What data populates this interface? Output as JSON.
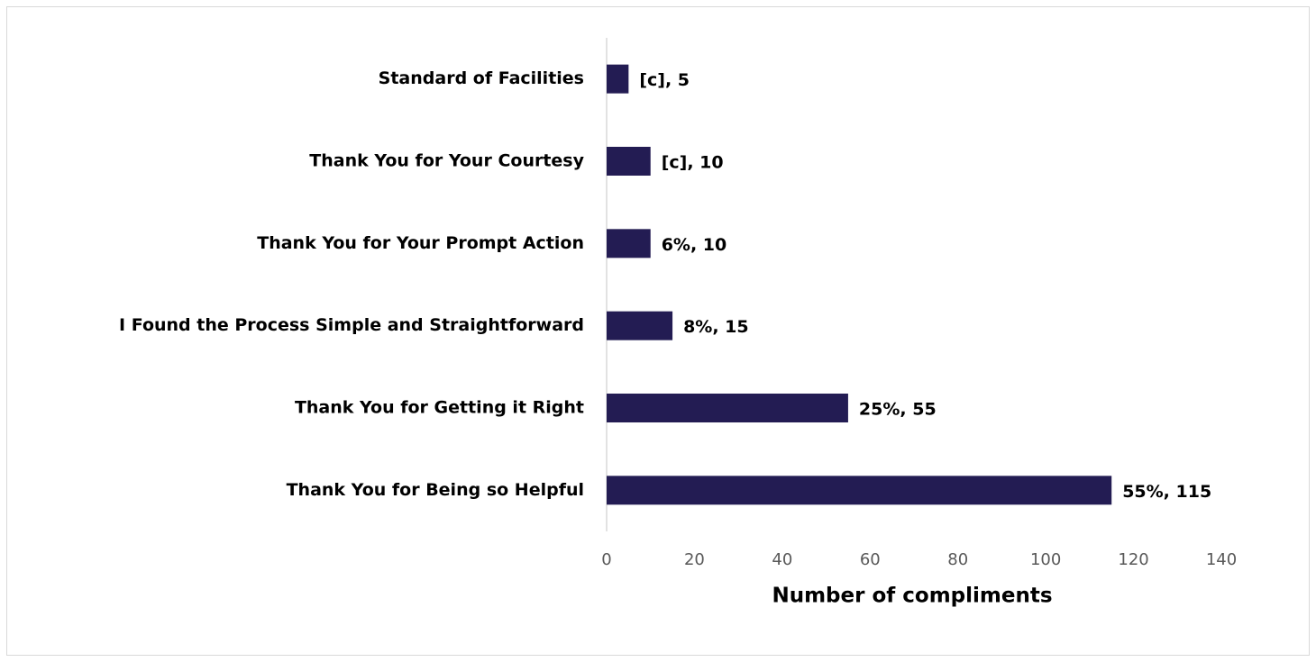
{
  "chart_data": {
    "type": "bar",
    "orientation": "horizontal",
    "categories": [
      "Standard of Facilities",
      "Thank You for Your Courtesy",
      "Thank You for Your Prompt Action",
      "I Found the Process Simple and Straightforward",
      "Thank You for Getting it Right",
      "Thank You for Being so Helpful"
    ],
    "values": [
      5,
      10,
      10,
      15,
      55,
      115
    ],
    "value_labels": [
      "[c], 5",
      "[c], 10",
      "6%, 10",
      "8%, 15",
      "25%, 55",
      "55%, 115"
    ],
    "color": "#231c53",
    "xlabel": "Number of compliments",
    "xlim": [
      0,
      140
    ],
    "xticks": [
      0,
      20,
      40,
      60,
      80,
      100,
      120,
      140
    ],
    "grid": false
  }
}
